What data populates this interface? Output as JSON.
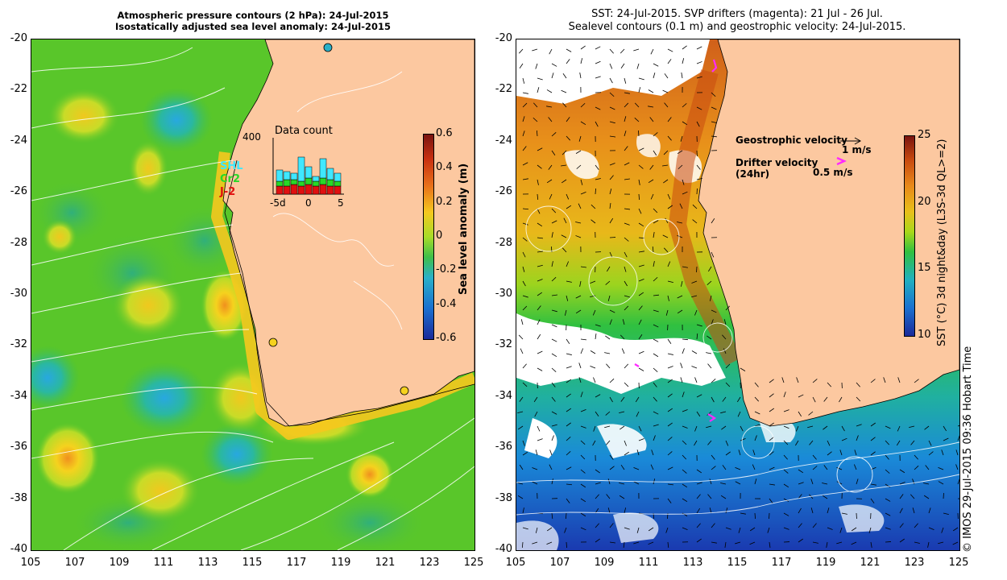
{
  "left_panel": {
    "title_line1": "Atmospheric pressure contours (2 hPa): 24-Jul-2015",
    "title_line2": "Isostatically adjusted sea level anomaly: 24-Jul-2015",
    "colorbar_label": "Sea level anomaly (m)",
    "colorbar_ticks": [
      "0.6",
      "0.4",
      "0.2",
      "0",
      "-0.2",
      "-0.4",
      "-0.6"
    ],
    "colorbar_colors": [
      "#8c1a0a",
      "#e0401a",
      "#f08a1a",
      "#f5d21e",
      "#8fdc28",
      "#3fbf4a",
      "#2ab0c8",
      "#1a70d0",
      "#1a2a9a"
    ],
    "inset": {
      "title": "Data count",
      "ymax_label": "400",
      "x_labels": [
        "-5d",
        "0",
        "5"
      ],
      "legend": [
        {
          "name": "SHL",
          "color": "#3fe8ff"
        },
        {
          "name": "Cr2",
          "color": "#28d828"
        },
        {
          "name": "J-2",
          "color": "#e01010"
        }
      ]
    }
  },
  "right_panel": {
    "title_line1": "SST: 24-Jul-2015. SVP drifters (magenta): 21 Jul - 26 Jul.",
    "title_line2": "Sealevel contours (0.1 m) and geostrophic velocity: 24-Jul-2015.",
    "colorbar_label": "SST (°C) 3d night&day (L3S-3d QL>=2)",
    "colorbar_ticks": [
      "25",
      "20",
      "15",
      "10"
    ],
    "colorbar_colors": [
      "#7a1410",
      "#c84a10",
      "#e88a1a",
      "#e8c01a",
      "#a8d81a",
      "#30c040",
      "#20b0c0",
      "#1a70d0",
      "#1a2a9a"
    ],
    "legend": {
      "geostrophic_label": "Geostrophic velocity",
      "geostrophic_scale": "1 m/s",
      "drifter_label": "Drifter velocity",
      "drifter_period": "(24hr)",
      "drifter_scale": "0.5 m/s",
      "drifter_color": "#ff2aff"
    }
  },
  "y_ticks": [
    "-20",
    "-22",
    "-24",
    "-26",
    "-28",
    "-30",
    "-32",
    "-34",
    "-36",
    "-38",
    "-40"
  ],
  "x_ticks": [
    "105",
    "107",
    "109",
    "111",
    "113",
    "115",
    "117",
    "119",
    "121",
    "123",
    "125"
  ],
  "credit": "© IMOS 29-Jul-2015 09:36 Hobart Time",
  "colors": {
    "land": "#fcc8a0",
    "sea_green": "#59c62a",
    "sst_warm": "#e8901a"
  }
}
